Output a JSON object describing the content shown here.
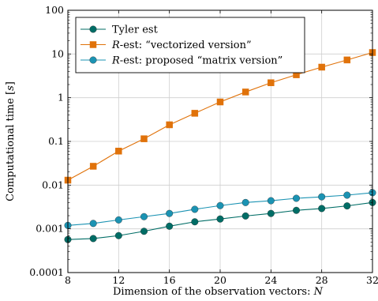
{
  "chart_data": {
    "type": "line",
    "title": "",
    "xlabel": "Dimension of the observation vectors: N",
    "ylabel": "Computational time [s]",
    "xscale": "linear",
    "yscale": "log",
    "xlim": [
      8,
      32
    ],
    "ylim": [
      0.0001,
      100
    ],
    "xticks": [
      8,
      12,
      16,
      20,
      24,
      28,
      32
    ],
    "xtick_labels": [
      "8",
      "12",
      "16",
      "20",
      "24",
      "28",
      "32"
    ],
    "yticks": [
      0.0001,
      0.001,
      0.01,
      0.1,
      1,
      10,
      100
    ],
    "ytick_labels": [
      "0.0001",
      "0.001",
      "0.01",
      "0.1",
      "1",
      "10",
      "100"
    ],
    "grid": true,
    "legend_position": "top-left",
    "x": [
      8,
      10,
      12,
      14,
      16,
      18,
      20,
      22,
      24,
      26,
      28,
      30,
      32
    ],
    "series": [
      {
        "name": "Tyler est",
        "color": "#006d66",
        "marker": "circle",
        "values": [
          0.00057,
          0.0006,
          0.0007,
          0.00088,
          0.00115,
          0.00145,
          0.00168,
          0.00197,
          0.00225,
          0.00265,
          0.00292,
          0.00335,
          0.004
        ]
      },
      {
        "name": "R-est: “vectorized version”",
        "color": "#e0720a",
        "marker": "square",
        "values": [
          0.013,
          0.027,
          0.06,
          0.115,
          0.24,
          0.44,
          0.8,
          1.35,
          2.2,
          3.35,
          5.0,
          7.3,
          10.8
        ]
      },
      {
        "name": "R-est: proposed “matrix version”",
        "color": "#1b93b3",
        "marker": "circle",
        "values": [
          0.0012,
          0.00133,
          0.0016,
          0.0019,
          0.00225,
          0.0028,
          0.0034,
          0.004,
          0.0044,
          0.005,
          0.0054,
          0.0059,
          0.0067
        ]
      }
    ]
  },
  "legend": {
    "entries": [
      {
        "prefix": "",
        "text": "Tyler est"
      },
      {
        "prefix": "R",
        "text": "-est: “vectorized version”"
      },
      {
        "prefix": "R",
        "text": "-est: proposed “matrix version”"
      }
    ]
  },
  "labels": {
    "x_text": "Dimension of the observation vectors: ",
    "x_var": "N",
    "y_text": "Computational time [",
    "y_var": "s",
    "y_close": "]"
  }
}
